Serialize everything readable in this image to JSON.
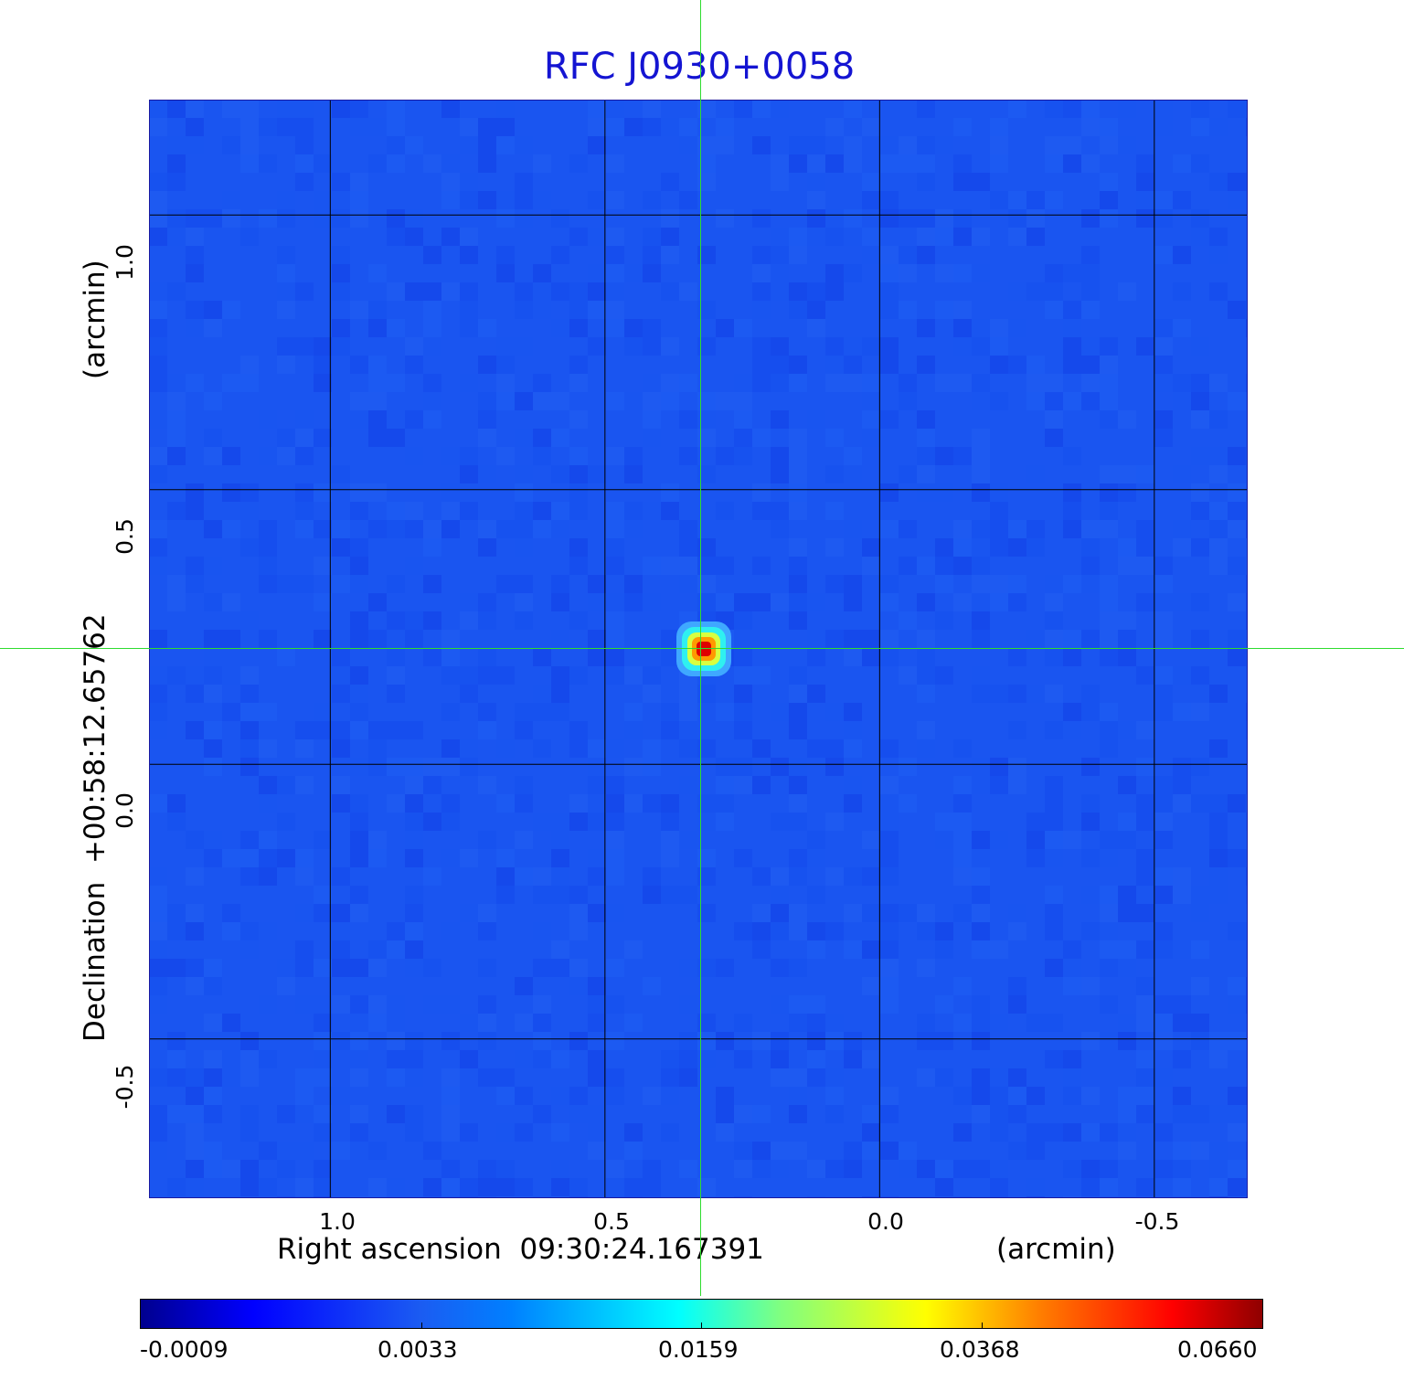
{
  "chart_data": {
    "type": "heatmap",
    "title": "RFC J0930+0058",
    "xlabel": "Right ascension  09:30:24.167391",
    "xunit": "(arcmin)",
    "ylabel": "Declination  +00:58:12.65762",
    "yunit": "(arcmin)",
    "x_ticks": [
      "1.0",
      "0.5",
      "0.0",
      "-0.5"
    ],
    "x_tick_values": [
      1.0,
      0.5,
      0.0,
      -0.5
    ],
    "y_ticks": [
      "1.0",
      "0.5",
      "0.0",
      "-0.5"
    ],
    "y_tick_values": [
      1.0,
      0.5,
      0.0,
      -0.5
    ],
    "xlim": [
      1.33,
      -0.67
    ],
    "ylim": [
      -0.79,
      1.21
    ],
    "grid": true,
    "crosshair": {
      "x": 0.32,
      "y": 0.21
    },
    "source_peak": {
      "x": 0.32,
      "y": 0.21,
      "value": 0.066
    },
    "colorbar": {
      "ticks": [
        "-0.0009",
        "0.0033",
        "0.0159",
        "0.0368",
        "0.0660"
      ],
      "colormap": "jet"
    },
    "colors": {
      "title": "#1414d2",
      "background_map": "#1a55f0",
      "crosshair": "#2fdc2f",
      "grid": "#000000"
    }
  }
}
